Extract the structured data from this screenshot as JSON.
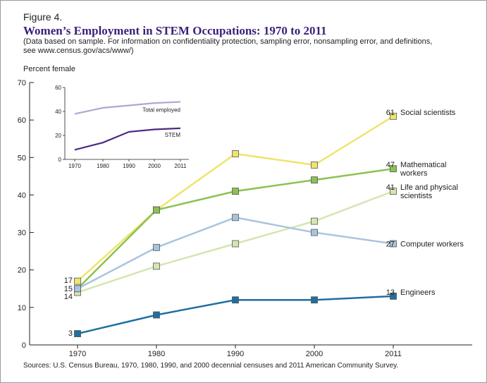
{
  "figure_label": "Figure 4.",
  "chart_data": {
    "type": "line",
    "title": "Women’s Employment in STEM Occupations: 1970 to 2011",
    "subtitle_lines": [
      "(Data based on sample. For information on confidentiality protection, sampling error, nonsampling error, and definitions,",
      "see www.census.gov/acs/www/)"
    ],
    "ylabel": "Percent female",
    "source": "Sources: U.S. Census Bureau, 1970, 1980, 1990, and 2000 decennial censuses and 2011 American Community Survey.",
    "x": [
      "1970",
      "1980",
      "1990",
      "2000",
      "2011"
    ],
    "ylim": [
      0,
      70
    ],
    "yticks": [
      0,
      10,
      20,
      30,
      40,
      50,
      60,
      70
    ],
    "grid": false,
    "series": [
      {
        "name": "Social scientists",
        "values": [
          17,
          36,
          51,
          48,
          61
        ],
        "color": "#f0e46c",
        "end_label": "61",
        "start_label": "17",
        "label_lines": [
          "Social scientists"
        ]
      },
      {
        "name": "Mathematical workers",
        "values": [
          15,
          36,
          41,
          44,
          47
        ],
        "color": "#8cc152",
        "end_label": "47",
        "start_label": "",
        "label_lines": [
          "Mathematical",
          "workers"
        ]
      },
      {
        "name": "Life and physical scientists",
        "values": [
          14,
          21,
          27,
          33,
          41
        ],
        "color": "#d4e6b0",
        "end_label": "41",
        "start_label": "14",
        "label_lines": [
          "Life and physical",
          "scientists"
        ]
      },
      {
        "name": "Computer workers",
        "values": [
          15,
          26,
          34,
          30,
          27
        ],
        "color": "#a9c4dc",
        "end_label": "27",
        "start_label": "15",
        "label_lines": [
          "Computer workers"
        ]
      },
      {
        "name": "Engineers",
        "values": [
          3,
          8,
          12,
          12,
          13
        ],
        "color": "#1f6f9f",
        "end_label": "13",
        "start_label": "3",
        "label_lines": [
          "Engineers"
        ]
      }
    ],
    "inset": {
      "type": "line",
      "x": [
        "1970",
        "1980",
        "1990",
        "2000",
        "2011"
      ],
      "ylim": [
        0,
        60
      ],
      "yticks": [
        0,
        20,
        40,
        60
      ],
      "series": [
        {
          "name": "Total employed",
          "values": [
            38,
            43,
            45,
            47,
            48
          ],
          "color": "#b3a6cf"
        },
        {
          "name": "STEM",
          "values": [
            8,
            14,
            23,
            25,
            26
          ],
          "color": "#4a2a84"
        }
      ]
    }
  }
}
